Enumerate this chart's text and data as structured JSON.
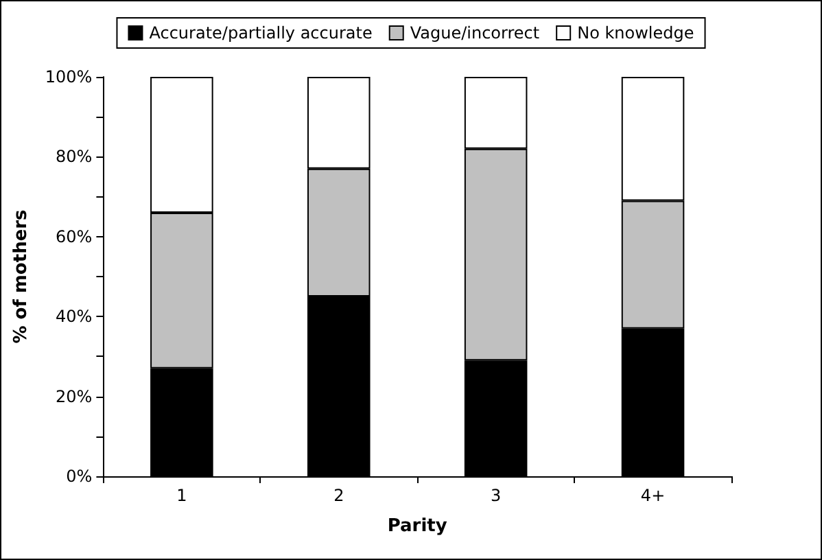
{
  "chart_data": {
    "type": "bar",
    "stacked": true,
    "xlabel": "Parity",
    "ylabel": "% of mothers",
    "categories": [
      "1",
      "2",
      "3",
      "4+"
    ],
    "series": [
      {
        "name": "Accurate/partially accurate",
        "color": "#000000",
        "values": [
          27,
          45,
          29,
          37
        ]
      },
      {
        "name": "Vague/incorrect",
        "color": "#c0c0c0",
        "values": [
          39,
          32,
          53,
          32
        ]
      },
      {
        "name": "No knowledge",
        "color": "#ffffff",
        "values": [
          34,
          23,
          18,
          31
        ]
      }
    ],
    "ylim": [
      0,
      100
    ],
    "yticks": [
      {
        "value": 0,
        "label": "0%"
      },
      {
        "value": 10,
        "label": null
      },
      {
        "value": 20,
        "label": "20%"
      },
      {
        "value": 30,
        "label": null
      },
      {
        "value": 40,
        "label": "40%"
      },
      {
        "value": 50,
        "label": null
      },
      {
        "value": 60,
        "label": "60%"
      },
      {
        "value": 70,
        "label": null
      },
      {
        "value": 80,
        "label": "80%"
      },
      {
        "value": 90,
        "label": null
      },
      {
        "value": 100,
        "label": "100%"
      }
    ],
    "grid": false,
    "legend": "top"
  }
}
